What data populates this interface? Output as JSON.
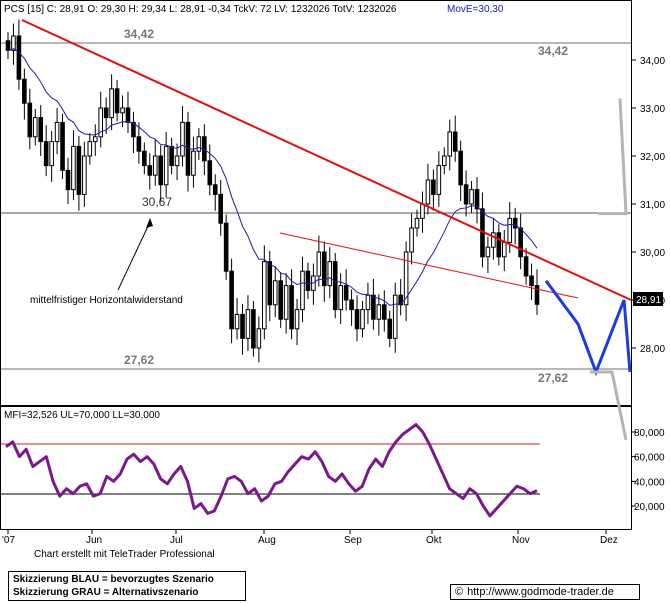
{
  "header_text": "PCS [15] C: 28,91 O: 29,30 H: 29,34 L: 28,91 -0,34 TckV: 72 LV: 1232026 TotV: 1232026",
  "ma_label": "MovE=30,30",
  "last_price_tag": "28,91",
  "annotations": {
    "level_high_left": "34,42",
    "level_high_right": "34,42",
    "level_mid": "30,67",
    "level_low_left": "27,62",
    "level_low_right": "27,62",
    "resistance_note": "mittelfristiger Horizontalwiderstand"
  },
  "mfi_header": "MFI=32,526 UL=70,000 LL=30,000",
  "footer_credit": "Chart erstellt mit TeleTrader Professional",
  "legend": {
    "line1": "Skizzierung BLAU = bevorzugtes Szenario",
    "line2": "Skizzierung GRAU = Alternativszenario"
  },
  "source_url": "http://www.godmode-trader.de",
  "copyright_symbol": "©",
  "colors": {
    "candle": "#000000",
    "moving_average": "#1c1cb0",
    "trend_line": "#e01010",
    "scenario_blue": "#1d3bd8",
    "scenario_gray": "#b4b4b4",
    "mfi_line": "#7a1a8a",
    "mfi_upper": "#d02020",
    "level_line": "#707070"
  },
  "chart_data": [
    {
      "type": "candlestick",
      "title": "PCS [15]",
      "x_tick_labels": [
        "'07",
        "Jun",
        "Jul",
        "Aug",
        "Sep",
        "Okt",
        "Nov",
        "Dez"
      ],
      "y_ticks": [
        28.0,
        29.0,
        30.0,
        31.0,
        32.0,
        33.0,
        34.0
      ],
      "y_tick_labels": [
        "28,00",
        "29,00",
        "30,00",
        "31,00",
        "32,00",
        "33,00",
        "34,00"
      ],
      "ylim": [
        27.0,
        35.0
      ],
      "last_close": 28.91,
      "horizontal_levels": [
        34.42,
        30.67,
        27.62
      ],
      "moving_average": {
        "name": "MovE",
        "last_value": 30.3
      },
      "grid": false,
      "close_series": [
        34.2,
        34.5,
        33.6,
        33.1,
        32.4,
        32.8,
        32.3,
        31.8,
        32.3,
        32.7,
        31.7,
        31.3,
        32.2,
        31.2,
        32.0,
        32.3,
        32.4,
        33.0,
        32.8,
        33.4,
        32.9,
        33.0,
        32.7,
        32.4,
        32.1,
        31.8,
        31.6,
        32.0,
        31.4,
        32.2,
        31.8,
        32.0,
        32.7,
        31.6,
        32.1,
        32.4,
        31.9,
        31.4,
        31.2,
        30.6,
        29.6,
        28.4,
        28.7,
        28.2,
        28.8,
        28.0,
        28.4,
        29.8,
        28.9,
        29.4,
        28.6,
        29.3,
        28.4,
        28.8,
        29.6,
        29.2,
        29.5,
        30.0,
        29.3,
        29.8,
        28.8,
        29.3,
        29.0,
        28.8,
        28.4,
        28.8,
        29.1,
        28.6,
        28.9,
        28.6,
        28.2,
        29.1,
        28.9,
        30.0,
        30.5,
        30.7,
        31.0,
        31.5,
        31.2,
        31.8,
        32.0,
        32.5,
        32.1,
        31.4,
        31.0,
        31.3,
        30.9,
        29.9,
        30.1,
        30.4,
        29.9,
        30.2,
        30.7,
        30.5,
        29.9,
        29.5,
        29.3,
        28.91
      ],
      "scenario_blue": [
        29.4,
        28.5,
        27.5,
        29.0,
        27.5
      ],
      "scenario_gray": [
        30.8,
        30.8,
        33.2
      ]
    },
    {
      "type": "line",
      "title": "MFI",
      "series": [
        {
          "name": "MFI",
          "last_value": 32.526
        }
      ],
      "upper_level": 70.0,
      "lower_level": 30.0,
      "y_ticks": [
        20,
        40,
        60,
        80
      ],
      "y_tick_labels": [
        "20,000",
        "40,000",
        "60,000",
        "80,000"
      ],
      "ylim": [
        0,
        90
      ],
      "mfi_series": [
        68,
        72,
        60,
        66,
        52,
        56,
        60,
        40,
        28,
        34,
        30,
        36,
        38,
        28,
        30,
        44,
        40,
        46,
        58,
        62,
        56,
        60,
        54,
        42,
        38,
        46,
        52,
        40,
        18,
        22,
        14,
        16,
        28,
        42,
        44,
        40,
        30,
        34,
        24,
        28,
        38,
        40,
        48,
        54,
        60,
        58,
        64,
        56,
        44,
        40,
        46,
        38,
        32,
        36,
        50,
        58,
        52,
        64,
        72,
        78,
        82,
        86,
        80,
        70,
        58,
        46,
        34,
        30,
        26,
        34,
        30,
        20,
        12,
        18,
        24,
        30,
        36,
        34,
        30,
        32.5
      ]
    }
  ]
}
